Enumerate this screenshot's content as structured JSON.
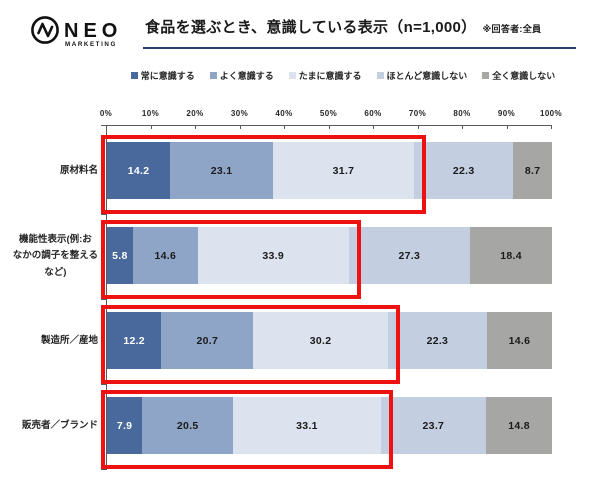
{
  "header": {
    "logo_name": "NEO",
    "logo_sub": "MARKETING",
    "title": "食品を選ぶとき、意識している表示（n=1,000）",
    "note": "※回答者:全員"
  },
  "chart_data": {
    "type": "bar",
    "variant": "horizontal-stacked-100pct",
    "title": "食品を選ぶとき、意識している表示（n=1,000）",
    "subtitle_note": "※回答者:全員",
    "categories": [
      "原材料名",
      "機能性表示(例:おなかの調子を整えるなど)",
      "製造所／産地",
      "販売者／ブランド"
    ],
    "categories_display": [
      "原材料名",
      "機能性表示(例:お\nなかの調子を整える\nなど)",
      "製造所／産地",
      "販売者／ブランド"
    ],
    "series": [
      {
        "name": "常に意識する",
        "color": "#49699c",
        "text_color": "#ffffff",
        "values": [
          14.2,
          5.8,
          12.2,
          7.9
        ]
      },
      {
        "name": "よく意識する",
        "color": "#8fa5c7",
        "text_color": "#1a1a1a",
        "values": [
          23.1,
          14.6,
          20.7,
          20.5
        ]
      },
      {
        "name": "たまに意識する",
        "color": "#dde3ee",
        "text_color": "#1a1a1a",
        "values": [
          31.7,
          33.9,
          30.2,
          33.1
        ]
      },
      {
        "name": "ほとんど意識しない",
        "color": "#c3cfe1",
        "text_color": "#1a1a1a",
        "values": [
          22.3,
          27.3,
          22.3,
          23.7
        ]
      },
      {
        "name": "全く意識しない",
        "color": "#a6a6a4",
        "text_color": "#1a1a1a",
        "values": [
          8.7,
          18.4,
          14.6,
          14.8
        ]
      }
    ],
    "x_axis": {
      "ticks": [
        "0%",
        "10%",
        "20%",
        "30%",
        "40%",
        "50%",
        "60%",
        "70%",
        "80%",
        "90%",
        "100%"
      ],
      "range": [
        0,
        100
      ],
      "position": "top"
    },
    "legend_position": "top",
    "grid": false,
    "highlight": {
      "description": "red boxes outline the first three segments of every bar",
      "segments_covered": 3,
      "color": "#ee1111",
      "rows": [
        0,
        1,
        2,
        3
      ]
    },
    "accent_colors": {
      "title_rule": "#2b3f6e",
      "axis": "#595959"
    }
  }
}
